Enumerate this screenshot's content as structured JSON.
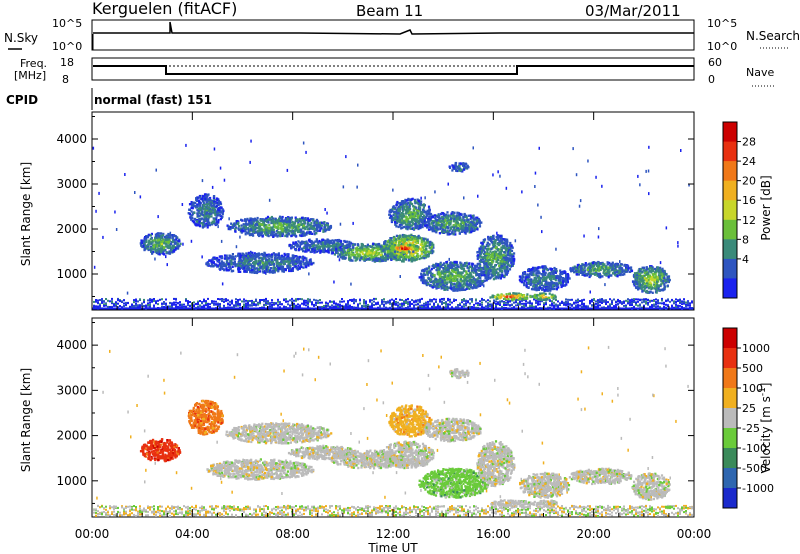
{
  "header": {
    "station": "Kerguelen (fitACF)",
    "beam": "Beam 11",
    "date": "03/Mar/2011"
  },
  "noise_panel": {
    "left_label": "N.Sky",
    "right_label": "N.Search",
    "left_ticks": [
      "10^5",
      "10^0"
    ],
    "right_ticks": [
      "10^5",
      "10^0"
    ]
  },
  "freq_panel": {
    "left_label_1": "Freq.",
    "left_label_2": "[MHz]",
    "right_label": "Nave",
    "left_ticks": [
      "18",
      "8"
    ],
    "right_ticks": [
      "60",
      "0"
    ]
  },
  "cpid": {
    "label": "CPID",
    "value": "normal (fast) 151"
  },
  "chart_data": [
    {
      "type": "heatmap",
      "quantity": "Power",
      "colorbar_label": "Power [dB]",
      "colorbar_ticks": [
        "28",
        "24",
        "20",
        "16",
        "12",
        "8",
        "4"
      ],
      "colors": [
        "#1a22ee",
        "#2e55c0",
        "#3a8a7a",
        "#6abf3a",
        "#c8d62a",
        "#f0b020",
        "#f07818",
        "#e83010",
        "#cc0000"
      ],
      "ylabel": "Slant Range [km]",
      "yticks": [
        1000,
        2000,
        3000,
        4000
      ],
      "ylim": [
        200,
        4600
      ],
      "xlim": [
        "00:00",
        "24:00"
      ],
      "echo_regions": [
        {
          "t0": 1.9,
          "t1": 3.5,
          "r0": 1450,
          "r1": 1950,
          "level": 3
        },
        {
          "t0": 3.8,
          "t1": 5.2,
          "r0": 2050,
          "r1": 2800,
          "level": 2
        },
        {
          "t0": 5.3,
          "t1": 9.5,
          "r0": 1850,
          "r1": 2300,
          "level": 3
        },
        {
          "t0": 4.5,
          "t1": 8.8,
          "r0": 1050,
          "r1": 1500,
          "level": 2
        },
        {
          "t0": 7.8,
          "t1": 10.5,
          "r0": 1500,
          "r1": 1800,
          "level": 2
        },
        {
          "t0": 9.5,
          "t1": 12.5,
          "r0": 1300,
          "r1": 1700,
          "level": 4
        },
        {
          "t0": 11.5,
          "t1": 13.6,
          "r0": 1300,
          "r1": 1900,
          "level": 6
        },
        {
          "t0": 11.8,
          "t1": 13.0,
          "r0": 1500,
          "r1": 1700,
          "level": 8
        },
        {
          "t0": 11.8,
          "t1": 13.5,
          "r0": 2000,
          "r1": 2700,
          "level": 3
        },
        {
          "t0": 13.2,
          "t1": 15.5,
          "r0": 1900,
          "r1": 2400,
          "level": 3
        },
        {
          "t0": 13.0,
          "t1": 15.8,
          "r0": 650,
          "r1": 1300,
          "level": 3
        },
        {
          "t0": 14.2,
          "t1": 15.0,
          "r0": 3300,
          "r1": 3500,
          "level": 2
        },
        {
          "t0": 15.3,
          "t1": 16.8,
          "r0": 900,
          "r1": 1900,
          "level": 3
        },
        {
          "t0": 15.8,
          "t1": 17.5,
          "r0": 450,
          "r1": 600,
          "level": 7
        },
        {
          "t0": 17.5,
          "t1": 18.5,
          "r0": 450,
          "r1": 600,
          "level": 6
        },
        {
          "t0": 17.0,
          "t1": 19.0,
          "r0": 650,
          "r1": 1200,
          "level": 2
        },
        {
          "t0": 19.0,
          "t1": 21.5,
          "r0": 950,
          "r1": 1300,
          "level": 3
        },
        {
          "t0": 21.5,
          "t1": 23.0,
          "r0": 600,
          "r1": 1200,
          "level": 4
        }
      ]
    },
    {
      "type": "heatmap",
      "quantity": "Velocity",
      "colorbar_label": "Velocity [m s",
      "colorbar_label_sup": "-1",
      "colorbar_label_end": "]",
      "colorbar_ticks": [
        "1000",
        "500",
        "100",
        "25",
        "-25",
        "-100",
        "-500",
        "-1000"
      ],
      "colors": [
        "#1a2acc",
        "#2e66b0",
        "#3a8a5a",
        "#6acb3a",
        "#bbbbbb",
        "#f0b020",
        "#f07818",
        "#e83010",
        "#cc0000"
      ],
      "ylabel": "Slant Range [km]",
      "yticks": [
        1000,
        2000,
        3000,
        4000
      ],
      "ylim": [
        200,
        4600
      ],
      "xlim": [
        "00:00",
        "24:00"
      ],
      "echo_regions": [
        {
          "t0": 1.9,
          "t1": 3.5,
          "r0": 1450,
          "r1": 1950,
          "level": 7
        },
        {
          "t0": 3.8,
          "t1": 5.2,
          "r0": 2050,
          "r1": 2800,
          "level": 6
        },
        {
          "t0": 5.3,
          "t1": 9.5,
          "r0": 1850,
          "r1": 2300,
          "level": 4
        },
        {
          "t0": 4.5,
          "t1": 8.8,
          "r0": 1050,
          "r1": 1500,
          "level": 4
        },
        {
          "t0": 7.8,
          "t1": 10.5,
          "r0": 1500,
          "r1": 1800,
          "level": 4
        },
        {
          "t0": 9.5,
          "t1": 12.5,
          "r0": 1300,
          "r1": 1700,
          "level": 4
        },
        {
          "t0": 11.5,
          "t1": 13.6,
          "r0": 1300,
          "r1": 1900,
          "level": 4
        },
        {
          "t0": 11.8,
          "t1": 13.5,
          "r0": 2000,
          "r1": 2700,
          "level": 5
        },
        {
          "t0": 13.2,
          "t1": 15.5,
          "r0": 1900,
          "r1": 2400,
          "level": 4
        },
        {
          "t0": 13.0,
          "t1": 15.8,
          "r0": 650,
          "r1": 1300,
          "level": 3
        },
        {
          "t0": 14.2,
          "t1": 15.0,
          "r0": 3300,
          "r1": 3500,
          "level": 4
        },
        {
          "t0": 15.3,
          "t1": 16.8,
          "r0": 900,
          "r1": 1900,
          "level": 4
        },
        {
          "t0": 15.8,
          "t1": 17.5,
          "r0": 450,
          "r1": 600,
          "level": 4
        },
        {
          "t0": 17.5,
          "t1": 18.5,
          "r0": 450,
          "r1": 600,
          "level": 4
        },
        {
          "t0": 17.0,
          "t1": 19.0,
          "r0": 650,
          "r1": 1200,
          "level": 4
        },
        {
          "t0": 19.0,
          "t1": 21.5,
          "r0": 950,
          "r1": 1300,
          "level": 4
        },
        {
          "t0": 21.5,
          "t1": 23.0,
          "r0": 600,
          "r1": 1200,
          "level": 4
        }
      ]
    }
  ],
  "time_axis": {
    "ticks": [
      "00:00",
      "04:00",
      "08:00",
      "12:00",
      "16:00",
      "20:00",
      "00:00"
    ],
    "label": "Time UT"
  }
}
